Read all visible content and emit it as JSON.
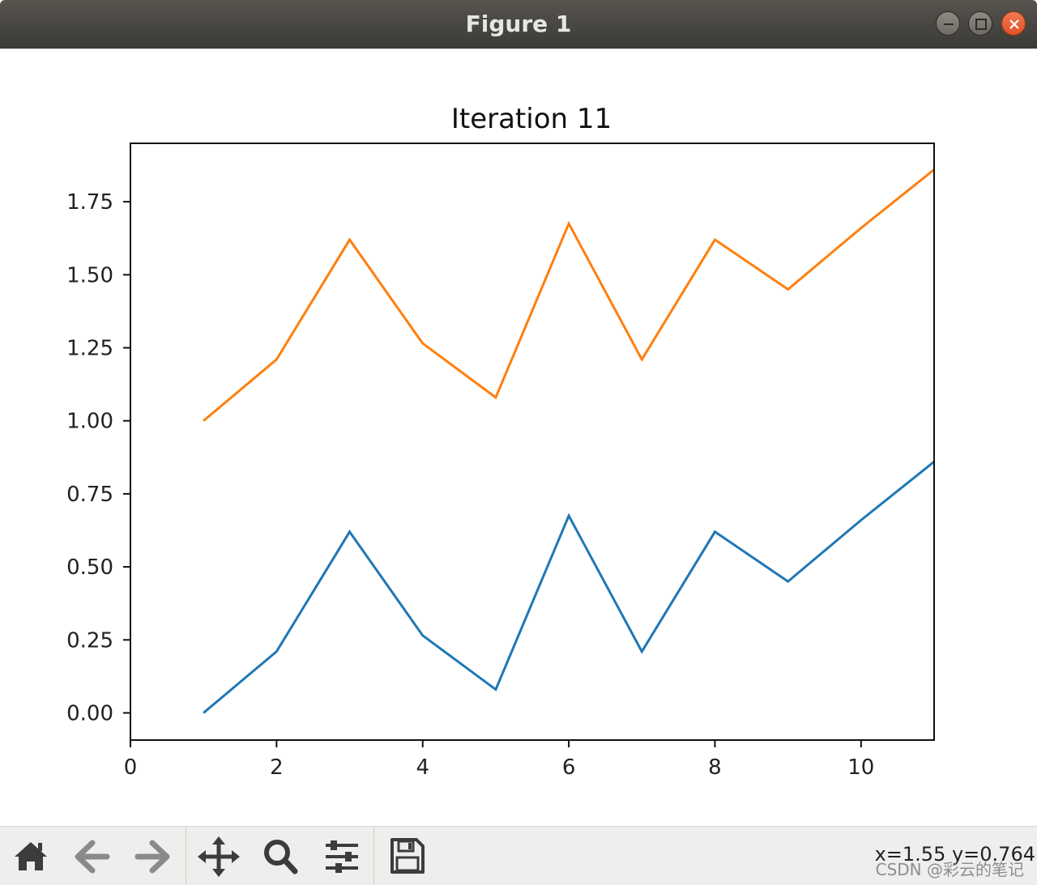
{
  "window": {
    "title": "Figure 1"
  },
  "toolbar": {
    "buttons": [
      {
        "name": "home-button",
        "icon": "home-icon"
      },
      {
        "name": "back-button",
        "icon": "arrow-left-icon"
      },
      {
        "name": "forward-button",
        "icon": "arrow-right-icon"
      },
      {
        "name": "pan-button",
        "icon": "move-icon"
      },
      {
        "name": "zoom-button",
        "icon": "magnifier-icon"
      },
      {
        "name": "subplots-button",
        "icon": "sliders-icon"
      },
      {
        "name": "save-button",
        "icon": "floppy-disk-icon"
      }
    ],
    "coords": "x=1.55 y=0.764"
  },
  "watermark": "CSDN @彩云的笔记",
  "chart_data": {
    "type": "line",
    "title": "Iteration 11",
    "xlabel": "",
    "ylabel": "",
    "xlim": [
      0,
      11
    ],
    "ylim": [
      -0.093,
      1.95
    ],
    "xticks": [
      "0",
      "2",
      "4",
      "6",
      "8",
      "10"
    ],
    "yticks": [
      "0.00",
      "0.25",
      "0.50",
      "0.75",
      "1.00",
      "1.25",
      "1.50",
      "1.75"
    ],
    "x": [
      1,
      2,
      3,
      4,
      5,
      6,
      7,
      8,
      9,
      10,
      11
    ],
    "series": [
      {
        "color": "#1f77b4",
        "values": [
          0.0,
          0.21,
          0.62,
          0.265,
          0.08,
          0.675,
          0.21,
          0.62,
          0.45,
          0.66,
          0.86
        ]
      },
      {
        "color": "#ff7f0e",
        "values": [
          1.0,
          1.21,
          1.62,
          1.265,
          1.08,
          1.675,
          1.21,
          1.62,
          1.45,
          1.66,
          1.86
        ]
      }
    ],
    "grid": false,
    "legend": "none"
  }
}
